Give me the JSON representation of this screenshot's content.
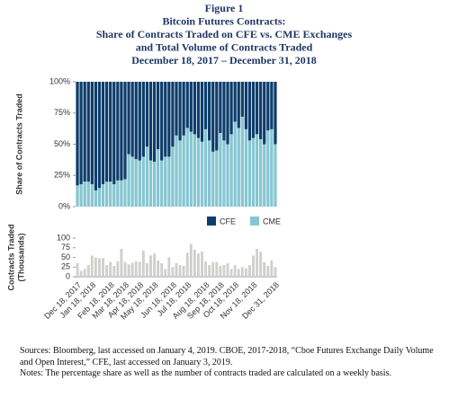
{
  "figure": {
    "title_lines": [
      "Figure 1",
      "Bitcoin Futures Contracts:",
      "Share of Contracts Traded on CFE vs. CME Exchanges",
      "and Total Volume of Contracts Traded",
      "December 18, 2017 – December 31, 2018"
    ]
  },
  "chart_data": [
    {
      "type": "bar",
      "stacked": true,
      "y_label": "Share of Contracts Traded",
      "ylim": [
        0,
        100
      ],
      "yticks": [
        {
          "value": 0,
          "label": "0%"
        },
        {
          "value": 25,
          "label": "25%"
        },
        {
          "value": 50,
          "label": "50%"
        },
        {
          "value": 75,
          "label": "75%"
        },
        {
          "value": 100,
          "label": "100%"
        }
      ],
      "legend": "bottom",
      "series": [
        {
          "name": "CFE",
          "color": "#0d3d6b",
          "values": [
            83,
            82,
            80,
            80,
            82,
            87,
            85,
            82,
            80,
            80,
            82,
            79,
            79,
            78,
            58,
            60,
            62,
            63,
            60,
            52,
            63,
            64,
            54,
            63,
            60,
            60,
            52,
            43,
            47,
            43,
            37,
            40,
            42,
            45,
            48,
            38,
            47,
            56,
            55,
            41,
            47,
            50,
            42,
            32,
            37,
            28,
            38,
            47,
            45,
            42,
            46,
            50,
            39,
            38,
            50
          ]
        },
        {
          "name": "CME",
          "color": "#86c6d2",
          "values": [
            17,
            18,
            20,
            20,
            18,
            13,
            15,
            18,
            20,
            20,
            18,
            21,
            21,
            22,
            42,
            40,
            38,
            37,
            40,
            48,
            37,
            36,
            46,
            37,
            40,
            40,
            48,
            57,
            53,
            57,
            63,
            60,
            58,
            55,
            52,
            62,
            53,
            44,
            45,
            59,
            53,
            50,
            58,
            68,
            63,
            72,
            62,
            53,
            55,
            58,
            54,
            50,
            61,
            62,
            50
          ]
        }
      ]
    },
    {
      "type": "bar",
      "y_label_lines": [
        "Contracts Traded",
        "(Thousands)"
      ],
      "color": "#cfcfcb",
      "ylim": [
        0,
        100
      ],
      "yticks": [
        0,
        25,
        50,
        75,
        100
      ],
      "categories": [
        "Dec 18, 2017",
        null,
        null,
        null,
        "Jan 18, 2018",
        null,
        null,
        null,
        null,
        "Feb 18, 2018",
        null,
        null,
        null,
        "Mar 18, 2018",
        null,
        null,
        null,
        "Apr 18, 2018",
        null,
        null,
        null,
        "May 18, 2018",
        null,
        null,
        null,
        null,
        "Jun 18, 2018",
        null,
        null,
        null,
        "Jul 18, 2018",
        null,
        null,
        null,
        null,
        "Aug 18, 2018",
        null,
        null,
        null,
        "Sep 18, 2018",
        null,
        null,
        null,
        "Oct 18, 2018",
        null,
        null,
        null,
        null,
        "Nov 18, 2018",
        null,
        null,
        null,
        null,
        null,
        "Dec 31, 2018"
      ],
      "values": [
        35,
        15,
        20,
        30,
        55,
        50,
        48,
        48,
        30,
        38,
        28,
        40,
        72,
        38,
        32,
        36,
        40,
        38,
        68,
        35,
        55,
        60,
        42,
        35,
        20,
        50,
        25,
        35,
        30,
        28,
        62,
        85,
        70,
        60,
        65,
        40,
        30,
        38,
        38,
        28,
        30,
        35,
        20,
        30,
        20,
        25,
        22,
        30,
        55,
        72,
        65,
        38,
        28,
        42,
        25
      ]
    }
  ],
  "notes": [
    "Sources: Bloomberg, last accessed on January 4, 2019. CBOE, 2017-2018, “Cboe Futures Exchange Daily Volume and Open Interest,” CFE, last accessed on January 3, 2019.",
    "Notes: The percentage share as well as the number of contracts traded are calculated on a weekly basis."
  ]
}
